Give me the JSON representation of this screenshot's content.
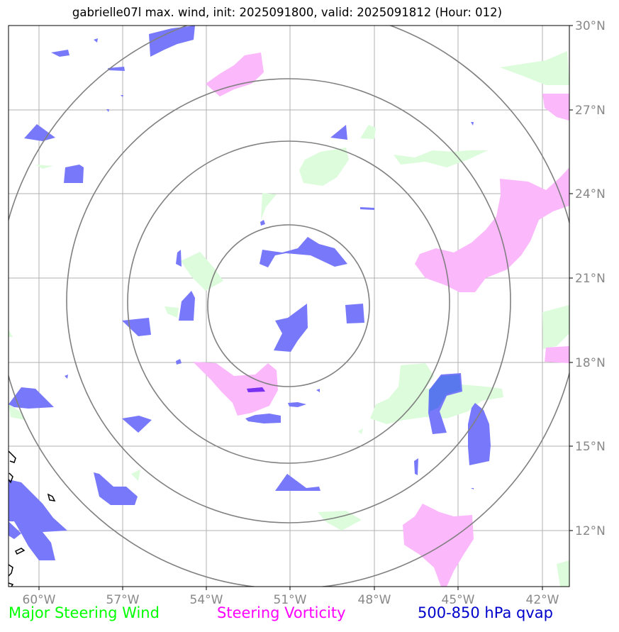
{
  "title": "gabrielle07l max. wind, init: 2025091800, valid: 2025091812 (Hour: 012)",
  "lon_ticks": [
    "60°W",
    "57°W",
    "54°W",
    "51°W",
    "48°W",
    "45°W",
    "42°W"
  ],
  "lat_ticks": [
    "30°N",
    "27°N",
    "24°N",
    "21°N",
    "18°N",
    "15°N",
    "12°N"
  ],
  "legend": {
    "wind": "Major Steering Wind",
    "vorticity": "Steering Vorticity",
    "qvap": "500-850 hPa qvap"
  },
  "colors": {
    "wind": "#00ff00",
    "vorticity": "#ff00ff",
    "qvap": "#0000cc",
    "wind_fill": "#dcfcdc",
    "vort_fill": "#fbb8fb",
    "qvap_fill": "#7878fa",
    "grid": "#b0b0b0",
    "ring": "#808080"
  },
  "range_rings": {
    "center": "51°W 20°N",
    "count": 4
  }
}
